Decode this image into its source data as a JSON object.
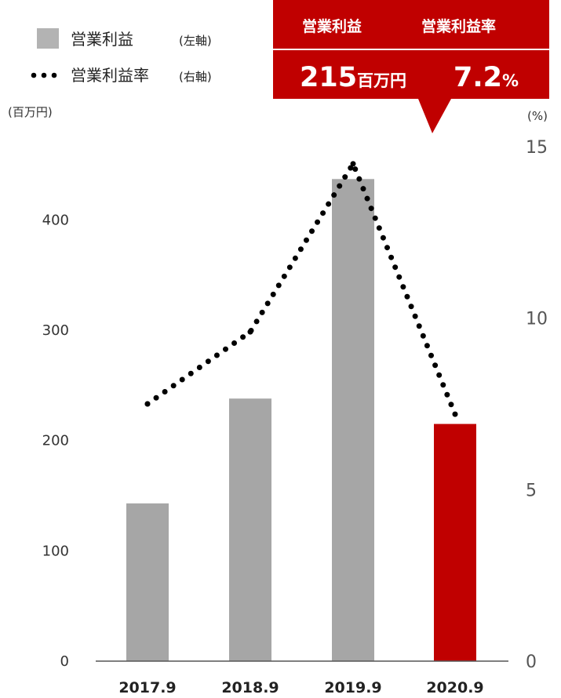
{
  "legend": {
    "bar_label": "営業利益",
    "bar_axis_note": "(左軸)",
    "line_label": "営業利益率",
    "line_axis_note": "(右軸)"
  },
  "units": {
    "left": "(百万円)",
    "right": "(%)"
  },
  "callout": {
    "head_left": "営業利益",
    "head_right": "営業利益率",
    "profit_value": "215",
    "profit_unit": "百万円",
    "rate_value": "7.2",
    "rate_unit": "%"
  },
  "colors": {
    "bar": "#a6a6a6",
    "highlight": "#c00000",
    "line": "#000000",
    "axis": "#555555"
  },
  "chart_data": {
    "type": "bar",
    "categories": [
      "2017.9",
      "2018.9",
      "2019.9",
      "2020.9"
    ],
    "series": [
      {
        "name": "営業利益",
        "axis": "left",
        "type": "bar",
        "values": [
          143,
          238,
          437,
          215
        ]
      },
      {
        "name": "営業利益率",
        "axis": "right",
        "type": "line",
        "style": "dotted",
        "values": [
          7.5,
          9.6,
          14.5,
          7.2
        ]
      }
    ],
    "highlight_index": 3,
    "y_left": {
      "ylim": [
        0,
        450
      ],
      "ticks": [
        0,
        100,
        200,
        300,
        400
      ]
    },
    "y_right": {
      "ylim": [
        0,
        15
      ],
      "ticks": [
        0,
        5,
        10,
        15
      ]
    },
    "grid": false,
    "legend_position": "top-left"
  }
}
